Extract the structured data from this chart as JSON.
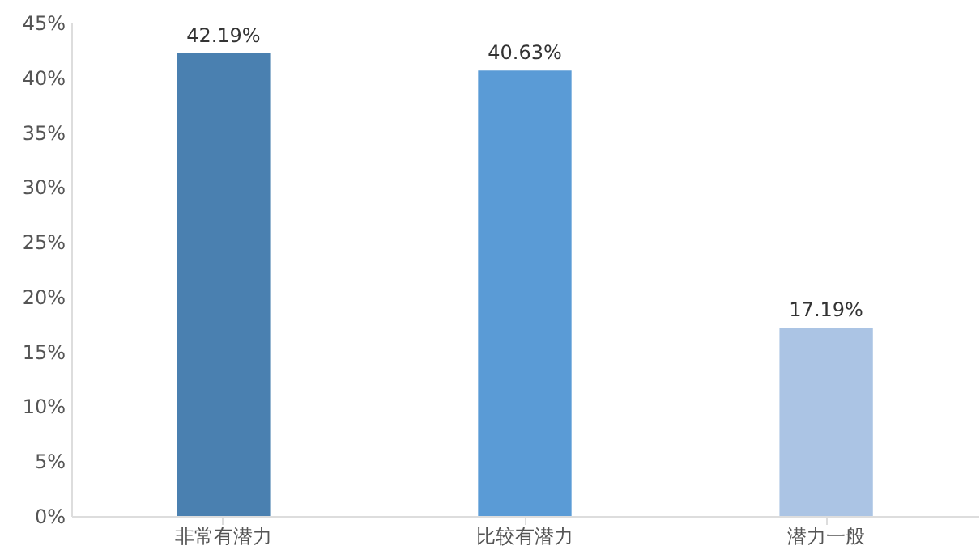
{
  "chart_data": {
    "type": "bar",
    "categories": [
      "非常有潜力",
      "比较有潜力",
      "潜力一般"
    ],
    "values": [
      42.19,
      40.63,
      17.19
    ],
    "colors": [
      "#4a80b0",
      "#5a9bd6",
      "#abc4e4"
    ],
    "value_labels": [
      "42.19%",
      "40.63%",
      "17.19%"
    ],
    "ylim": [
      0,
      45
    ],
    "yticks": [
      {
        "value": 0,
        "label": "0%"
      },
      {
        "value": 5,
        "label": "5%"
      },
      {
        "value": 10,
        "label": "10%"
      },
      {
        "value": 15,
        "label": "15%"
      },
      {
        "value": 20,
        "label": "20%"
      },
      {
        "value": 25,
        "label": "25%"
      },
      {
        "value": 30,
        "label": "30%"
      },
      {
        "value": 35,
        "label": "35%"
      },
      {
        "value": 40,
        "label": "40%"
      },
      {
        "value": 45,
        "label": "45%"
      }
    ],
    "grid": false
  }
}
